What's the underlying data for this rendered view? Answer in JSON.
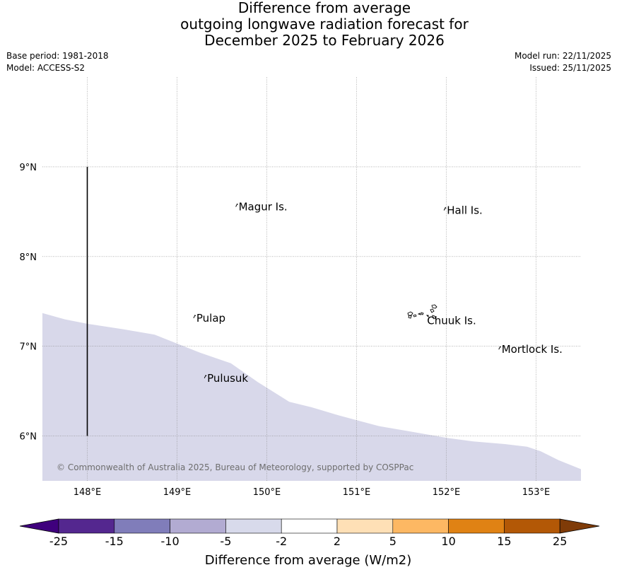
{
  "header": {
    "title_line1": "Difference from average",
    "title_line2": "outgoing longwave radiation forecast for",
    "title_line3": "December 2025 to February 2026",
    "base_period": "Base period: 1981-2018",
    "model": "Model: ACCESS-S2",
    "model_run": "Model run: 22/11/2025",
    "issued": "Issued: 25/11/2025"
  },
  "map": {
    "lon_range": [
      147.5,
      153.5
    ],
    "lat_range": [
      5.5,
      10.0
    ],
    "lon_ticks": [
      {
        "value": 148,
        "label": "148°E"
      },
      {
        "value": 149,
        "label": "149°E"
      },
      {
        "value": 150,
        "label": "150°E"
      },
      {
        "value": 151,
        "label": "151°E"
      },
      {
        "value": 152,
        "label": "152°E"
      },
      {
        "value": 153,
        "label": "153°E"
      }
    ],
    "lat_ticks": [
      {
        "value": 6,
        "label": "6°N"
      },
      {
        "value": 7,
        "label": "7°N"
      },
      {
        "value": 8,
        "label": "8°N"
      },
      {
        "value": 9,
        "label": "9°N"
      }
    ],
    "anomaly_region": {
      "category": "-5 to -2",
      "color": "#d8d8ea",
      "boundary": [
        [
          147.5,
          7.37
        ],
        [
          147.75,
          7.3
        ],
        [
          148.0,
          7.25
        ],
        [
          148.4,
          7.19
        ],
        [
          148.75,
          7.13
        ],
        [
          149.0,
          7.03
        ],
        [
          149.25,
          6.93
        ],
        [
          149.6,
          6.81
        ],
        [
          149.9,
          6.6
        ],
        [
          150.25,
          6.38
        ],
        [
          150.5,
          6.32
        ],
        [
          150.8,
          6.23
        ],
        [
          151.25,
          6.11
        ],
        [
          151.6,
          6.05
        ],
        [
          152.0,
          5.98
        ],
        [
          152.3,
          5.94
        ],
        [
          152.65,
          5.91
        ],
        [
          152.9,
          5.88
        ],
        [
          153.05,
          5.83
        ],
        [
          153.25,
          5.73
        ],
        [
          153.5,
          5.63
        ]
      ]
    },
    "boundary_line": {
      "lon": 148.0,
      "lat_from": 6.0,
      "lat_to": 9.0
    },
    "islands": [
      {
        "name": "Magur Is.",
        "lon": 149.67,
        "lat": 8.57
      },
      {
        "name": "Hall Is.",
        "lon": 151.99,
        "lat": 8.53
      },
      {
        "name": "Pulap",
        "lon": 149.2,
        "lat": 7.33
      },
      {
        "name": "Chuuk Is.",
        "lon": 151.88,
        "lat": 7.3
      },
      {
        "name": "Mortlock Is.",
        "lon": 152.6,
        "lat": 6.98
      },
      {
        "name": "Pulusuk",
        "lon": 149.32,
        "lat": 6.66
      }
    ],
    "copyright": "© Commonwealth of Australia 2025, Bureau of Meteorology, supported by COSPPac"
  },
  "colorbar": {
    "label": "Difference from average (W/m2)",
    "ticks": [
      "-25",
      "-15",
      "-10",
      "-5",
      "-2",
      "2",
      "5",
      "10",
      "15",
      "25"
    ],
    "colors": [
      "#3f007d",
      "#54278f",
      "#807dba",
      "#b2abd2",
      "#d8daeb",
      "#ffffff",
      "#fee0b6",
      "#fdb863",
      "#e08214",
      "#b35806",
      "#7f3b08"
    ]
  }
}
